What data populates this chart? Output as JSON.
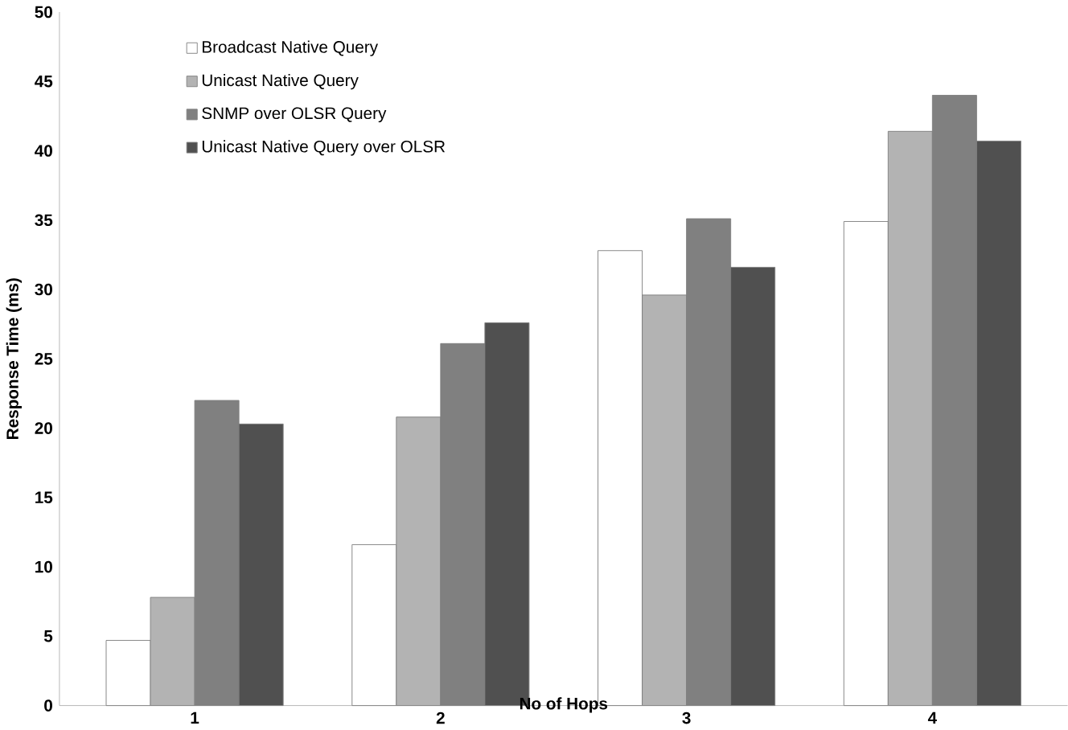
{
  "chart_data": {
    "type": "bar",
    "xlabel": "No of Hops",
    "ylabel": "Response Time (ms)",
    "categories": [
      "1",
      "2",
      "3",
      "4"
    ],
    "series": [
      {
        "name": "Broadcast Native Query",
        "color": "#ffffff",
        "values": [
          4.7,
          11.6,
          32.8,
          34.9
        ]
      },
      {
        "name": "Unicast Native Query",
        "color": "#b3b3b3",
        "values": [
          7.8,
          20.8,
          29.6,
          41.4
        ]
      },
      {
        "name": "SNMP over OLSR Query",
        "color": "#808080",
        "values": [
          22.0,
          26.1,
          35.1,
          44.0
        ]
      },
      {
        "name": "Unicast Native Query over OLSR",
        "color": "#505050",
        "values": [
          20.3,
          27.6,
          31.6,
          40.7
        ]
      }
    ],
    "ylim": [
      0,
      50
    ],
    "yticks": [
      0,
      5,
      10,
      15,
      20,
      25,
      30,
      35,
      40,
      45,
      50
    ],
    "legend": "top left",
    "grid": false
  }
}
